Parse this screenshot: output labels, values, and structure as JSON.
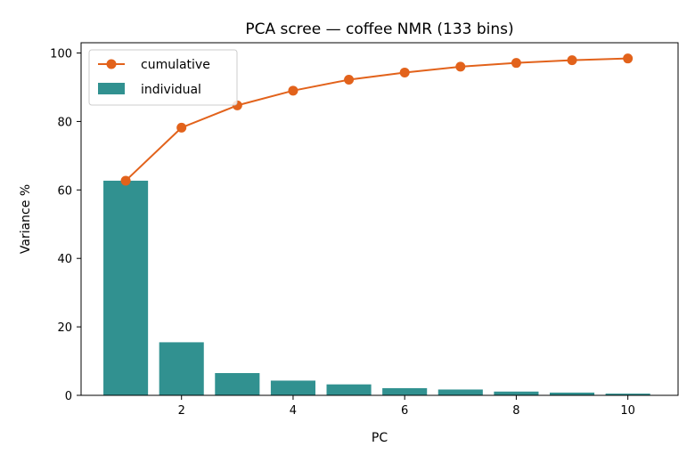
{
  "chart_data": {
    "type": "bar",
    "title": "PCA scree — coffee NMR (133 bins)",
    "xlabel": "PC",
    "ylabel": "Variance %",
    "x": [
      1,
      2,
      3,
      4,
      5,
      6,
      7,
      8,
      9,
      10
    ],
    "xlim": [
      0.2,
      10.9
    ],
    "ylim": [
      0,
      103
    ],
    "xticks": [
      2,
      4,
      6,
      8,
      10
    ],
    "yticks": [
      0,
      20,
      40,
      60,
      80,
      100
    ],
    "grid": false,
    "legend_position": "top-left",
    "series": [
      {
        "name": "cumulative",
        "type": "line",
        "marker": "circle",
        "color": "#e2621b",
        "values": [
          62.7,
          78.2,
          84.7,
          89.0,
          92.2,
          94.3,
          96.0,
          97.1,
          97.9,
          98.4
        ]
      },
      {
        "name": "individual",
        "type": "bar",
        "color": "#319190",
        "values": [
          62.7,
          15.5,
          6.5,
          4.3,
          3.2,
          2.1,
          1.7,
          1.1,
          0.8,
          0.5
        ]
      }
    ]
  }
}
